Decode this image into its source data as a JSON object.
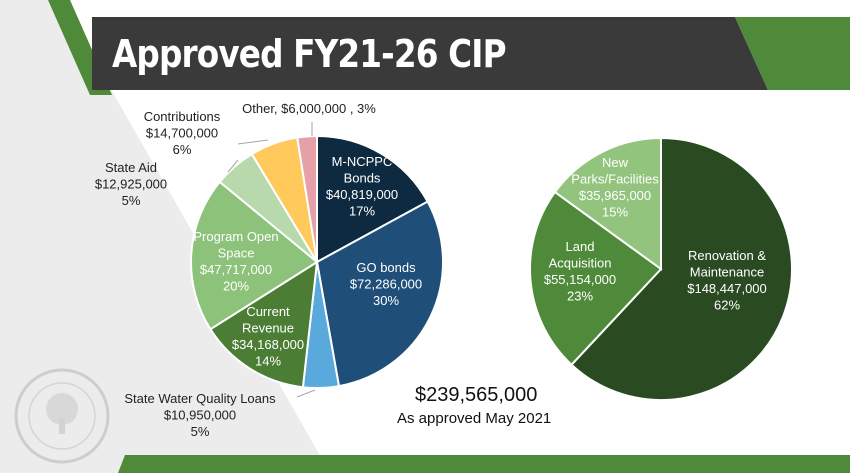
{
  "title": "Approved FY21-26 CIP",
  "total": "$239,565,000",
  "approved_note": "As approved May 2021",
  "logo_text": "MONTGOMERY PARKS",
  "colors": {
    "banner": "#3a3a3a",
    "accent_green": "#4e8a3a",
    "dark_green": "#2d4d24"
  },
  "chart_data": [
    {
      "type": "pie",
      "slices": [
        {
          "label": "M-NCPPC Bonds",
          "amount": "$40,819,000",
          "pct": "17%",
          "value": 40819000,
          "color": "#0e2a40"
        },
        {
          "label": "GO bonds",
          "amount": "$72,286,000",
          "pct": "30%",
          "value": 72286000,
          "color": "#1f4e79"
        },
        {
          "label": "State Water Quality Loans",
          "amount": "$10,950,000",
          "pct": "5%",
          "value": 10950000,
          "color": "#5aa9dc"
        },
        {
          "label": "Current Revenue",
          "amount": "$34,168,000",
          "pct": "14%",
          "value": 34168000,
          "color": "#4b7d35"
        },
        {
          "label": "Program Open Space",
          "amount": "$47,717,000",
          "pct": "20%",
          "value": 47717000,
          "color": "#8cc27a"
        },
        {
          "label": "State Aid",
          "amount": "$12,925,000",
          "pct": "5%",
          "value": 12925000,
          "color": "#b7d9ab"
        },
        {
          "label": "Contributions",
          "amount": "$14,700,000",
          "pct": "6%",
          "value": 14700000,
          "color": "#ffc95c"
        },
        {
          "label": "Other,",
          "amount": "$6,000,000 ,",
          "pct": "3%",
          "value": 6000000,
          "color": "#e6a0a8"
        }
      ]
    },
    {
      "type": "pie",
      "slices": [
        {
          "label": "Renovation & Maintenance",
          "amount": "$148,447,000",
          "pct": "62%",
          "value": 148447000,
          "color": "#2a4a22"
        },
        {
          "label": "Land Acquisition",
          "amount": "$55,154,000",
          "pct": "23%",
          "value": 55154000,
          "color": "#4e8a3a"
        },
        {
          "label": "New Parks/Facilities",
          "amount": "$35,965,000",
          "pct": "15%",
          "value": 35965000,
          "color": "#92c47e"
        }
      ]
    }
  ]
}
